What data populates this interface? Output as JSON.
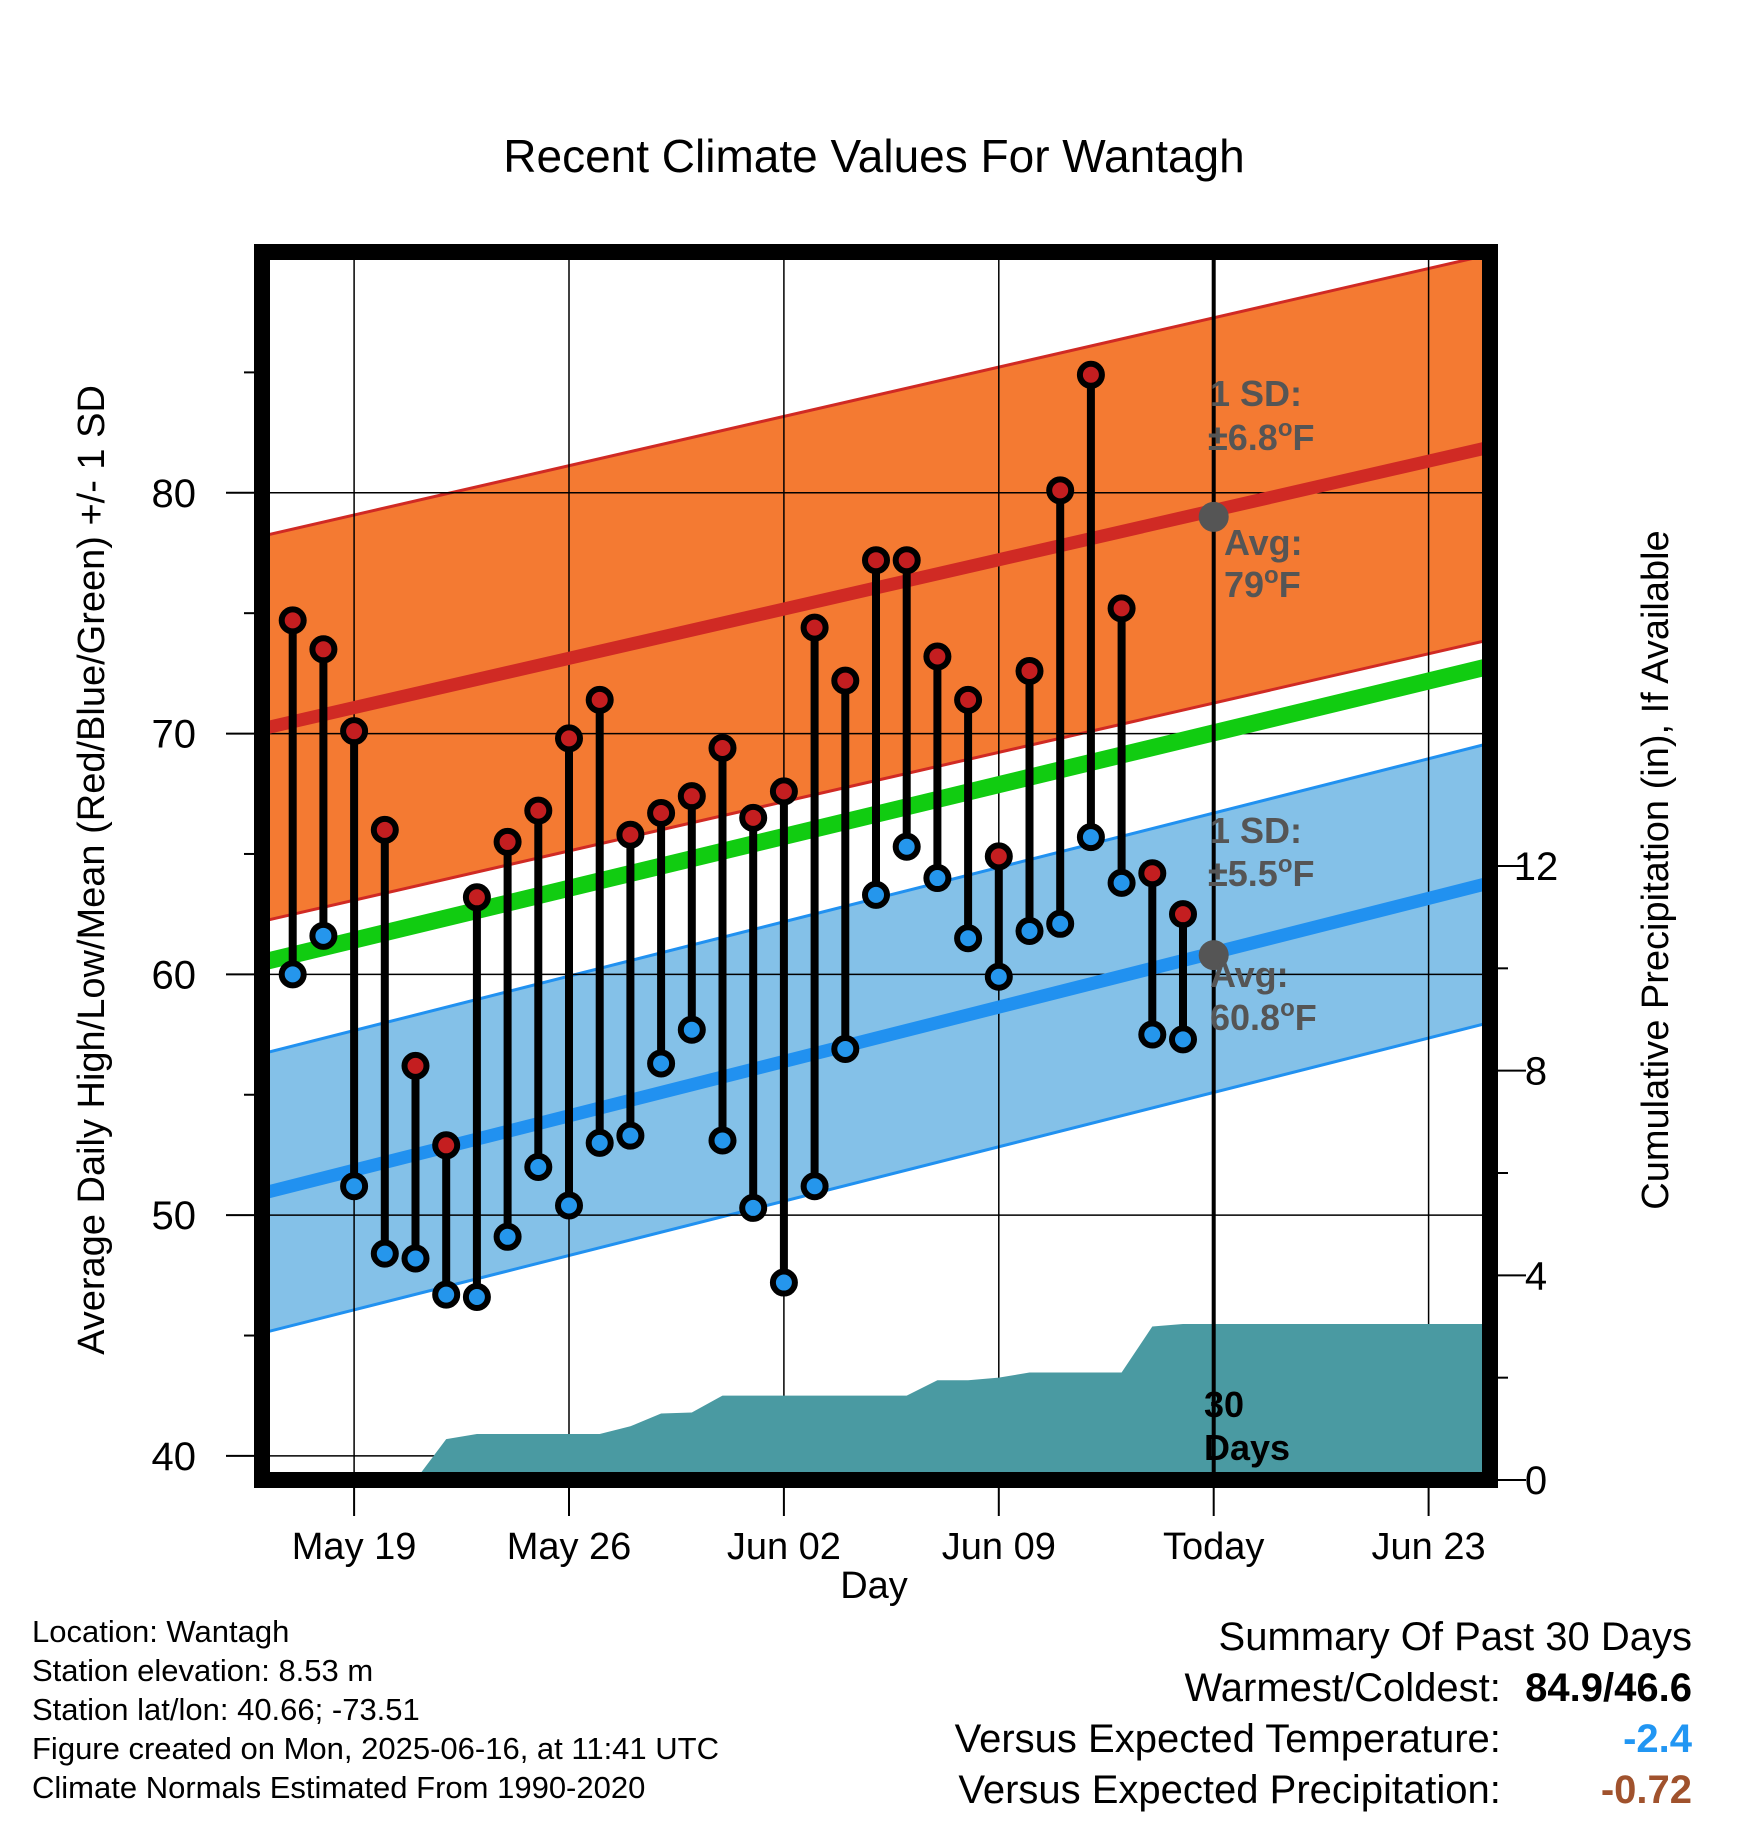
{
  "chart_data": {
    "type": "line",
    "title": "Recent Climate Values For Wantagh",
    "xlabel": "Day",
    "ylabel": "Average Daily High/Low/Mean (Red/Blue/Green) +/- 1 SD",
    "ylabel_right": "Cumulative Precipitation (in), If Available",
    "x_ticks": [
      "May 19",
      "May 26",
      "Jun 02",
      "Jun 09",
      "Today",
      "Jun 23"
    ],
    "y_ticks": [
      40,
      50,
      60,
      70,
      80
    ],
    "y2_ticks": [
      0,
      4,
      8,
      12
    ],
    "ylim": [
      39,
      90
    ],
    "y2lim": [
      0,
      24
    ],
    "xlim": [
      "2025-05-16",
      "2025-06-25"
    ],
    "today": "2025-06-16",
    "grid": true,
    "normals": {
      "x": [
        "2025-05-16",
        "2025-06-25"
      ],
      "avg_high": [
        70.2,
        81.9
      ],
      "avg_high_sd": 8.0,
      "avg_low": [
        50.9,
        63.8
      ],
      "avg_low_sd": 5.8,
      "avg_mean": [
        60.5,
        72.8
      ]
    },
    "daily": {
      "dates": [
        "2025-05-17",
        "2025-05-18",
        "2025-05-19",
        "2025-05-20",
        "2025-05-21",
        "2025-05-22",
        "2025-05-23",
        "2025-05-24",
        "2025-05-25",
        "2025-05-26",
        "2025-05-27",
        "2025-05-28",
        "2025-05-29",
        "2025-05-30",
        "2025-05-31",
        "2025-06-01",
        "2025-06-02",
        "2025-06-03",
        "2025-06-04",
        "2025-06-05",
        "2025-06-06",
        "2025-06-07",
        "2025-06-08",
        "2025-06-09",
        "2025-06-10",
        "2025-06-11",
        "2025-06-12",
        "2025-06-13",
        "2025-06-14",
        "2025-06-15"
      ],
      "high": [
        74.7,
        73.5,
        70.1,
        66.0,
        56.2,
        52.9,
        63.2,
        65.5,
        66.8,
        69.8,
        71.4,
        65.8,
        66.7,
        67.4,
        69.4,
        66.5,
        67.6,
        74.4,
        72.2,
        77.2,
        77.2,
        73.2,
        71.4,
        64.9,
        72.6,
        80.1,
        84.9,
        75.2,
        64.2,
        62.5
      ],
      "low": [
        60.0,
        61.6,
        51.2,
        48.4,
        48.2,
        46.7,
        46.6,
        49.1,
        52.0,
        50.4,
        53.0,
        53.3,
        56.3,
        57.7,
        53.1,
        50.3,
        47.2,
        51.2,
        56.9,
        63.3,
        65.3,
        64.0,
        61.5,
        59.9,
        61.8,
        62.1,
        65.7,
        63.8,
        57.5,
        57.3
      ]
    },
    "precip": {
      "dates": [
        "2025-05-18",
        "2025-05-19",
        "2025-05-20",
        "2025-05-21",
        "2025-05-22",
        "2025-05-23",
        "2025-05-24",
        "2025-05-25",
        "2025-05-26",
        "2025-05-27",
        "2025-05-28",
        "2025-05-29",
        "2025-05-30",
        "2025-05-31",
        "2025-06-01",
        "2025-06-02",
        "2025-06-03",
        "2025-06-04",
        "2025-06-05",
        "2025-06-06",
        "2025-06-07",
        "2025-06-08",
        "2025-06-09",
        "2025-06-10",
        "2025-06-11",
        "2025-06-12",
        "2025-06-13",
        "2025-06-14",
        "2025-06-15",
        "2025-06-16",
        "2025-06-25"
      ],
      "cum": [
        0,
        0,
        0,
        0,
        0.8,
        0.9,
        0.9,
        0.9,
        0.9,
        0.9,
        1.05,
        1.3,
        1.32,
        1.65,
        1.65,
        1.65,
        1.65,
        1.65,
        1.65,
        1.65,
        1.95,
        1.95,
        2.0,
        2.1,
        2.1,
        2.1,
        2.1,
        3.0,
        3.05,
        3.05,
        3.05
      ]
    },
    "annotations": {
      "high_sd_label": "1 SD:",
      "high_sd_value": "±6.8",
      "high_avg_label": "Avg:",
      "high_avg_value": "79",
      "low_sd_label": "1 SD:",
      "low_sd_value": "±5.5",
      "low_avg_label": "Avg:",
      "low_avg_value": "60.8",
      "degree_unit_sup": "o",
      "degree_unit": "F",
      "today_avg_high": 79.0,
      "today_avg_low": 60.8,
      "window_label_line1": "30",
      "window_label_line2": "Days"
    },
    "colors": {
      "high_band": "#f47a32",
      "high_line": "#d02a24",
      "low_band": "#84c1e8",
      "low_line": "#2191f0",
      "mean_line": "#11cc11",
      "precip_fill": "#4a9aa2",
      "high_dot": "#c41e20",
      "low_dot": "#2596ec",
      "annotation_text": "#555555",
      "today_marker": "#555555"
    }
  },
  "footer": {
    "location": "Location: Wantagh",
    "elevation": "Station elevation: 8.53 m",
    "latlon": "Station lat/lon: 40.66; -73.51",
    "created": "Figure created on Mon, 2025-06-16, at 11:41 UTC",
    "normals": "Climate Normals Estimated From 1990-2020"
  },
  "summary": {
    "title": "Summary Of Past 30 Days",
    "warmest_coldest_label": "Warmest/Coldest:",
    "warmest_coldest_value": "84.9/46.6",
    "temp_label": "Versus Expected Temperature:",
    "temp_value": "-2.4",
    "precip_label": "Versus Expected Precipitation:",
    "precip_value": "-0.72",
    "temp_color": "#2196f3",
    "precip_color": "#a0522d"
  }
}
